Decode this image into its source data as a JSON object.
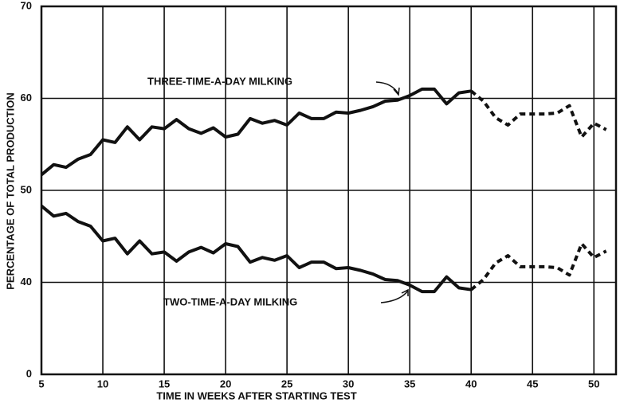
{
  "chart_data": {
    "type": "line",
    "x_label": "TIME IN WEEKS AFTER STARTING TEST",
    "y_label": "PERCENTAGE OF TOTAL PRODUCTION",
    "annotations": [
      "THREE-TIME-A-DAY MILKING",
      "TWO-TIME-A-DAY MILKING"
    ],
    "x": [
      5,
      6,
      7,
      8,
      9,
      10,
      11,
      12,
      13,
      14,
      15,
      16,
      17,
      18,
      19,
      20,
      21,
      22,
      23,
      24,
      25,
      26,
      27,
      28,
      29,
      30,
      31,
      32,
      33,
      34,
      35,
      36,
      37,
      38,
      39,
      40,
      41,
      42,
      43,
      44,
      45,
      46,
      47,
      48,
      49,
      50,
      51
    ],
    "series": [
      {
        "name": "THREE-TIME-A-DAY MILKING",
        "color": "#111111",
        "values": [
          51.7,
          52.8,
          52.5,
          53.4,
          53.9,
          55.5,
          55.2,
          56.9,
          55.5,
          56.9,
          56.7,
          57.7,
          56.7,
          56.2,
          56.8,
          55.8,
          56.1,
          57.8,
          57.3,
          57.6,
          57.1,
          58.4,
          57.8,
          57.8,
          58.5,
          58.4,
          58.7,
          59.1,
          59.7,
          59.8,
          60.3,
          61,
          61,
          59.4,
          60.6,
          60.8,
          59.7,
          57.9,
          57.1,
          58.3,
          58.3,
          58.3,
          58.4,
          59.2,
          55.8,
          57.3,
          56.6
        ]
      },
      {
        "name": "TWO-TIME-A-DAY MILKING",
        "color": "#111111",
        "values": [
          48.3,
          47.2,
          47.5,
          46.6,
          46.1,
          44.5,
          44.8,
          43.1,
          44.5,
          43.1,
          43.3,
          42.3,
          43.3,
          43.8,
          43.2,
          44.2,
          43.9,
          42.2,
          42.7,
          42.4,
          42.9,
          41.6,
          42.2,
          42.2,
          41.5,
          41.6,
          41.3,
          40.9,
          40.3,
          40.2,
          39.7,
          39,
          39,
          40.6,
          39.4,
          39.2,
          40.3,
          42.1,
          42.9,
          41.7,
          41.7,
          41.7,
          41.6,
          40.8,
          44.2,
          42.7,
          43.4
        ]
      }
    ],
    "dashed_from_x": 40,
    "xlim": [
      5,
      51.8
    ],
    "xticks": [
      5,
      10,
      15,
      20,
      25,
      30,
      35,
      40,
      45,
      50
    ],
    "ylim": [
      0,
      70
    ],
    "y_break": [
      0,
      30
    ],
    "yticks": [
      0,
      40,
      50,
      60,
      70
    ],
    "grid": true
  }
}
